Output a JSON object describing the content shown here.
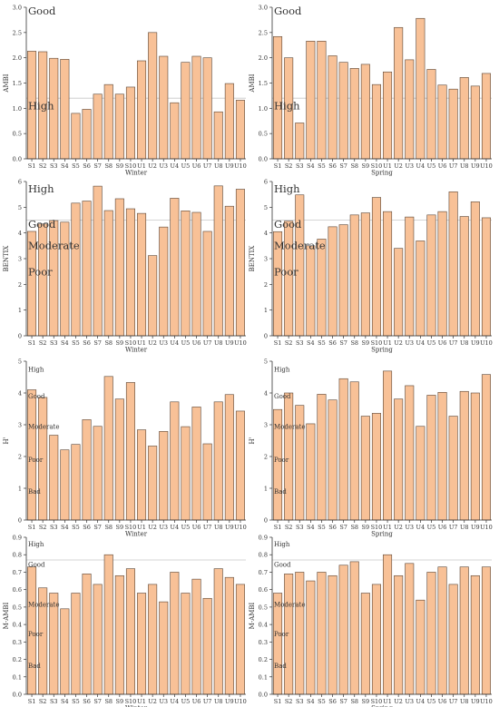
{
  "chart_data": [
    {
      "type": "bar",
      "ylabel": "AMBI",
      "xlabel": "Winter",
      "ylim": [
        0,
        3.0
      ],
      "yticks": [
        "0.0",
        "0.5",
        "1.0",
        "1.5",
        "2.0",
        "2.5",
        "3.0"
      ],
      "categories": [
        "S1",
        "S2",
        "S3",
        "S4",
        "S5",
        "S6",
        "S7",
        "S8",
        "S9",
        "S10",
        "U1",
        "U2",
        "U3",
        "U4",
        "U5",
        "U6",
        "U7",
        "U8",
        "U9",
        "U10"
      ],
      "values": [
        2.13,
        2.12,
        1.99,
        1.97,
        0.9,
        0.98,
        1.28,
        1.47,
        1.28,
        1.42,
        1.94,
        2.5,
        2.03,
        1.11,
        1.91,
        2.03,
        2.0,
        0.93,
        1.49,
        1.16
      ],
      "annotations": [
        {
          "text": "Good",
          "y": 2.93
        },
        {
          "text": "High",
          "y": 1.05
        }
      ],
      "refline": 1.2
    },
    {
      "type": "bar",
      "ylabel": "AMBI",
      "xlabel": "Spring",
      "ylim": [
        0,
        3.0
      ],
      "yticks": [
        "0.0",
        "0.5",
        "1.0",
        "1.5",
        "2.0",
        "2.5",
        "3.0"
      ],
      "categories": [
        "S1",
        "S2",
        "S3",
        "S4",
        "S5",
        "S6",
        "S7",
        "S8",
        "S9",
        "S10",
        "U1",
        "U2",
        "U3",
        "U4",
        "U5",
        "U6",
        "U7",
        "U8",
        "U9",
        "U10"
      ],
      "values": [
        2.42,
        2.0,
        0.71,
        2.33,
        2.33,
        2.04,
        1.91,
        1.79,
        1.87,
        1.47,
        1.72,
        2.6,
        1.96,
        2.78,
        1.77,
        1.46,
        1.38,
        1.61,
        1.44,
        1.69
      ],
      "annotations": [
        {
          "text": "Good",
          "y": 2.93
        },
        {
          "text": "High",
          "y": 1.05
        }
      ],
      "refline": 1.2
    },
    {
      "type": "bar",
      "ylabel": "BENTIX",
      "xlabel": "Winter",
      "ylim": [
        0,
        6
      ],
      "yticks": [
        "0",
        "1",
        "2",
        "3",
        "4",
        "5",
        "6"
      ],
      "categories": [
        "S1",
        "S2",
        "S3",
        "S4",
        "S5",
        "S6",
        "S7",
        "S8",
        "S9",
        "S10",
        "U1",
        "U2",
        "U3",
        "U4",
        "U5",
        "U6",
        "U7",
        "U8",
        "U9",
        "U10"
      ],
      "values": [
        4.06,
        4.35,
        4.48,
        4.42,
        5.16,
        5.24,
        5.82,
        4.87,
        5.33,
        4.94,
        4.76,
        3.12,
        4.23,
        5.35,
        4.86,
        4.8,
        4.06,
        5.83,
        5.04,
        5.7
      ],
      "annotations": [
        {
          "text": "High",
          "y": 5.72
        },
        {
          "text": "Good",
          "y": 4.35
        },
        {
          "text": "Moderate",
          "y": 3.52
        },
        {
          "text": "Poor",
          "y": 2.48
        }
      ],
      "refline": 4.5
    },
    {
      "type": "bar",
      "ylabel": "BENTIX",
      "xlabel": "Spring",
      "ylim": [
        0,
        6
      ],
      "yticks": [
        "0",
        "1",
        "2",
        "3",
        "4",
        "5",
        "6"
      ],
      "categories": [
        "S1",
        "S2",
        "S3",
        "S4",
        "S5",
        "S6",
        "S7",
        "S8",
        "S9",
        "S10",
        "U1",
        "U2",
        "U3",
        "U4",
        "U5",
        "U6",
        "U7",
        "U8",
        "U9",
        "U10"
      ],
      "values": [
        4.05,
        4.46,
        5.48,
        3.5,
        3.76,
        4.24,
        4.32,
        4.7,
        4.78,
        5.38,
        4.83,
        3.4,
        4.62,
        3.69,
        4.7,
        4.83,
        5.6,
        4.64,
        5.21,
        4.59
      ],
      "annotations": [
        {
          "text": "High",
          "y": 5.72
        },
        {
          "text": "Good",
          "y": 4.35
        },
        {
          "text": "Moderate",
          "y": 3.52
        },
        {
          "text": "Poor",
          "y": 2.48
        }
      ],
      "refline": 4.5
    },
    {
      "type": "bar",
      "ylabel": "H'",
      "xlabel": "Winter",
      "ylim": [
        0,
        5
      ],
      "yticks": [
        "0",
        "1",
        "2",
        "3",
        "4",
        "5"
      ],
      "categories": [
        "S1",
        "S2",
        "S3",
        "S4",
        "S5",
        "S6",
        "S7",
        "S8",
        "S9",
        "S10",
        "U1",
        "U2",
        "U3",
        "U4",
        "U5",
        "U6",
        "U7",
        "U8",
        "U9",
        "U10"
      ],
      "values": [
        4.1,
        3.86,
        2.67,
        2.21,
        2.38,
        3.16,
        2.95,
        4.52,
        3.81,
        4.33,
        2.84,
        2.33,
        2.79,
        3.72,
        2.94,
        3.56,
        2.4,
        3.72,
        3.95,
        3.43
      ],
      "annotations": [
        {
          "text": "High",
          "y": 4.75
        },
        {
          "text": "Good",
          "y": 3.9
        },
        {
          "text": "Moderate",
          "y": 2.95
        },
        {
          "text": "Poor",
          "y": 1.9
        },
        {
          "text": "Bad",
          "y": 0.9
        }
      ],
      "refline": null
    },
    {
      "type": "bar",
      "ylabel": "H'",
      "xlabel": "Spring",
      "ylim": [
        0,
        5
      ],
      "yticks": [
        "0",
        "1",
        "2",
        "3",
        "4",
        "5"
      ],
      "categories": [
        "S1",
        "S2",
        "S3",
        "S4",
        "S5",
        "S6",
        "S7",
        "S8",
        "S9",
        "S10",
        "U1",
        "U2",
        "U3",
        "U4",
        "U5",
        "U6",
        "U7",
        "U8",
        "U9",
        "U10"
      ],
      "values": [
        3.48,
        4.0,
        3.61,
        3.03,
        3.96,
        3.78,
        4.45,
        4.35,
        3.27,
        3.36,
        4.69,
        3.81,
        4.23,
        2.95,
        3.93,
        4.02,
        3.27,
        4.05,
        4.0,
        4.58
      ],
      "annotations": [
        {
          "text": "High",
          "y": 4.75
        },
        {
          "text": "Good",
          "y": 3.9
        },
        {
          "text": "Moderate",
          "y": 2.95
        },
        {
          "text": "Poor",
          "y": 1.9
        },
        {
          "text": "Bad",
          "y": 0.9
        }
      ],
      "refline": null
    },
    {
      "type": "bar",
      "ylabel": "M-AMBI",
      "xlabel": "Winter",
      "ylim": [
        0,
        0.9
      ],
      "yticks": [
        "0.0",
        "0.1",
        "0.2",
        "0.3",
        "0.4",
        "0.5",
        "0.6",
        "0.7",
        "0.8",
        "0.9"
      ],
      "categories": [
        "S1",
        "S2",
        "S3",
        "S4",
        "S5",
        "S6",
        "S7",
        "S8",
        "S9",
        "S10",
        "U1",
        "U2",
        "U3",
        "U4",
        "U5",
        "U6",
        "U7",
        "U8",
        "U9",
        "U10"
      ],
      "values": [
        0.73,
        0.61,
        0.58,
        0.49,
        0.58,
        0.69,
        0.63,
        0.8,
        0.68,
        0.72,
        0.58,
        0.63,
        0.53,
        0.7,
        0.58,
        0.66,
        0.55,
        0.72,
        0.67,
        0.63
      ],
      "annotations": [
        {
          "text": "High",
          "y": 0.86
        },
        {
          "text": "Good",
          "y": 0.745
        },
        {
          "text": "Moderate",
          "y": 0.515
        },
        {
          "text": "Poor",
          "y": 0.345
        },
        {
          "text": "Bad",
          "y": 0.165
        }
      ],
      "refline": 0.77
    },
    {
      "type": "bar",
      "ylabel": "M-AMBI",
      "xlabel": "Spring",
      "ylim": [
        0,
        0.9
      ],
      "yticks": [
        "0.0",
        "0.1",
        "0.2",
        "0.3",
        "0.4",
        "0.5",
        "0.6",
        "0.7",
        "0.8",
        "0.9"
      ],
      "categories": [
        "S1",
        "S2",
        "S3",
        "S4",
        "S5",
        "S6",
        "S7",
        "S8",
        "S9",
        "S10",
        "U1",
        "U2",
        "U3",
        "U4",
        "U5",
        "U6",
        "U7",
        "U8",
        "U9",
        "U10"
      ],
      "values": [
        0.58,
        0.69,
        0.7,
        0.65,
        0.7,
        0.68,
        0.74,
        0.76,
        0.58,
        0.63,
        0.8,
        0.68,
        0.75,
        0.54,
        0.7,
        0.73,
        0.63,
        0.73,
        0.68,
        0.73
      ],
      "annotations": [
        {
          "text": "High",
          "y": 0.86
        },
        {
          "text": "Good",
          "y": 0.745
        },
        {
          "text": "Moderate",
          "y": 0.515
        },
        {
          "text": "Poor",
          "y": 0.345
        },
        {
          "text": "Bad",
          "y": 0.165
        }
      ],
      "refline": 0.77
    }
  ],
  "colors": {
    "bar_fill": "#f8c197",
    "bar_stroke": "#5a4535",
    "axis": "#333333",
    "refline": "#c8c8c8",
    "text": "#333333"
  }
}
